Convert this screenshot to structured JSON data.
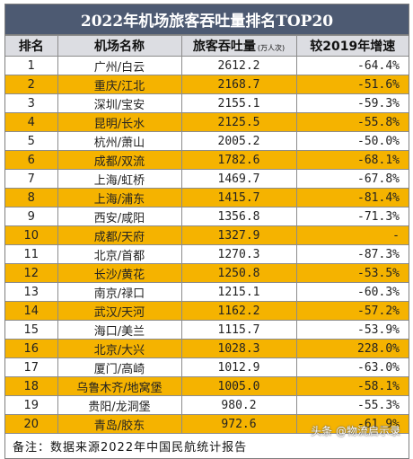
{
  "title": "2022年机场旅客吞吐量排名TOP20",
  "headers": {
    "rank": "排名",
    "airport": "机场名称",
    "throughput": "旅客吞吐量",
    "unit": "(万人次)",
    "growth": "较2019年增速"
  },
  "rows": [
    {
      "rank": "1",
      "airport": "广州/白云",
      "throughput": "2612.2",
      "growth": "-64.4%"
    },
    {
      "rank": "2",
      "airport": "重庆/江北",
      "throughput": "2168.7",
      "growth": "-51.6%"
    },
    {
      "rank": "3",
      "airport": "深圳/宝安",
      "throughput": "2155.1",
      "growth": "-59.3%"
    },
    {
      "rank": "4",
      "airport": "昆明/长水",
      "throughput": "2125.5",
      "growth": "-55.8%"
    },
    {
      "rank": "5",
      "airport": "杭州/萧山",
      "throughput": "2005.2",
      "growth": "-50.0%"
    },
    {
      "rank": "6",
      "airport": "成都/双流",
      "throughput": "1782.6",
      "growth": "-68.1%"
    },
    {
      "rank": "7",
      "airport": "上海/虹桥",
      "throughput": "1469.7",
      "growth": "-67.8%"
    },
    {
      "rank": "8",
      "airport": "上海/浦东",
      "throughput": "1415.7",
      "growth": "-81.4%"
    },
    {
      "rank": "9",
      "airport": "西安/咸阳",
      "throughput": "1356.8",
      "growth": "-71.3%"
    },
    {
      "rank": "10",
      "airport": "成都/天府",
      "throughput": "1327.9",
      "growth": "-"
    },
    {
      "rank": "11",
      "airport": "北京/首都",
      "throughput": "1270.3",
      "growth": "-87.3%"
    },
    {
      "rank": "12",
      "airport": "长沙/黄花",
      "throughput": "1250.8",
      "growth": "-53.5%"
    },
    {
      "rank": "13",
      "airport": "南京/禄口",
      "throughput": "1215.1",
      "growth": "-60.3%"
    },
    {
      "rank": "14",
      "airport": "武汉/天河",
      "throughput": "1162.2",
      "growth": "-57.2%"
    },
    {
      "rank": "15",
      "airport": "海口/美兰",
      "throughput": "1115.7",
      "growth": "-53.9%"
    },
    {
      "rank": "16",
      "airport": "北京/大兴",
      "throughput": "1028.3",
      "growth": "228.0%"
    },
    {
      "rank": "17",
      "airport": "厦门/高崎",
      "throughput": "1012.9",
      "growth": "-63.0%"
    },
    {
      "rank": "18",
      "airport": "乌鲁木齐/地窝堡",
      "throughput": "1005.0",
      "growth": "-58.1%"
    },
    {
      "rank": "19",
      "airport": "贵阳/龙洞堡",
      "throughput": "980.2",
      "growth": "-55.3%"
    },
    {
      "rank": "20",
      "airport": "青岛/胶东",
      "throughput": "972.6",
      "growth": "-61.9%"
    }
  ],
  "note": "备注：数据来源2022年中国民航统计报告",
  "watermark": "头条 @物流启示录",
  "colors": {
    "title_bg": "#4d5a72",
    "header_bg": "#dcdde2",
    "highlight_row": "#f5b300"
  }
}
